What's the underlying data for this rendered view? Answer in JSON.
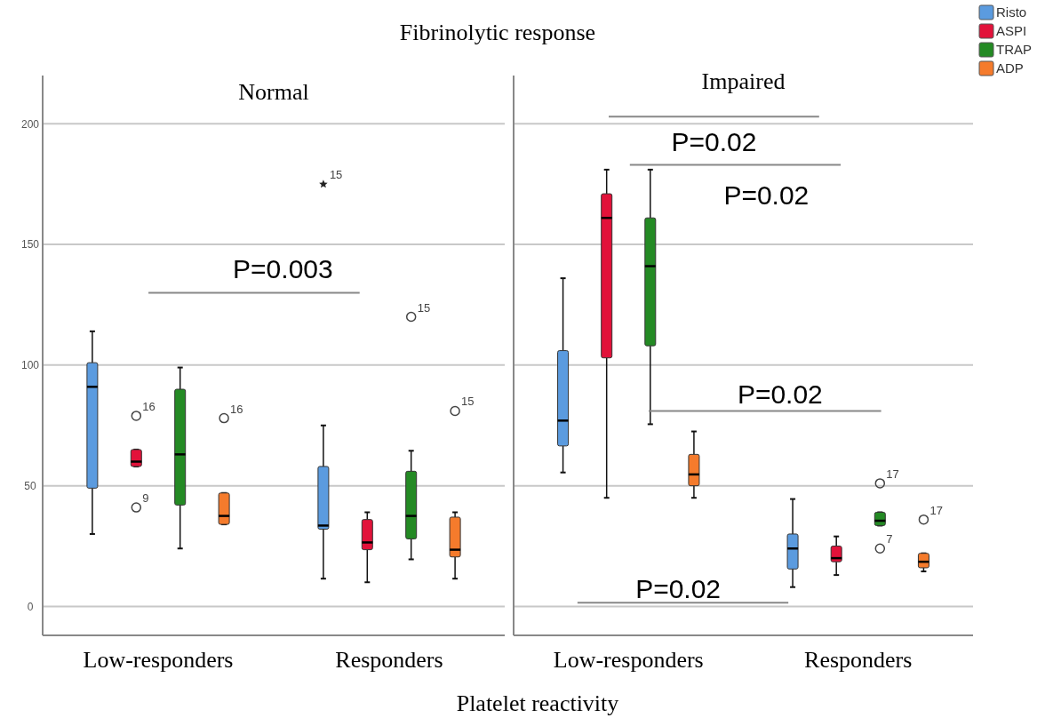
{
  "chart_data": [
    {
      "type": "box",
      "title": "Normal",
      "subtitle": "Fibrinolytic response",
      "xlabel": "Platelet reactivity",
      "categories": [
        "Low-responders",
        "Responders"
      ],
      "ylim": [
        -12,
        220
      ],
      "yticks": [
        0,
        50,
        100,
        150,
        200
      ],
      "grid": "y",
      "series": [
        {
          "color": "#5b9bdf",
          "boxes": [
            {
              "low": 30,
              "q1": 49,
              "median": 91,
              "q3": 101,
              "high": 114
            },
            {
              "low": 11.5,
              "q1": 32,
              "median": 33.5,
              "q3": 58,
              "high": 75,
              "outliers": [
                175
              ]
            }
          ]
        },
        {
          "color": "#e2123a",
          "boxes": [
            {
              "low": 58,
              "q1": 58,
              "median": 60,
              "q3": 65,
              "high": 65,
              "outliers": [
                79,
                41
              ]
            },
            {
              "low": 10,
              "q1": 23.5,
              "median": 26.5,
              "q3": 36,
              "high": 39
            }
          ]
        },
        {
          "color": "#248a24",
          "boxes": [
            {
              "low": 24,
              "q1": 42,
              "median": 63,
              "q3": 90,
              "high": 99
            },
            {
              "low": 19.5,
              "q1": 28,
              "median": 37.5,
              "q3": 56,
              "high": 64.5,
              "outliers": [
                120
              ]
            }
          ]
        },
        {
          "color": "#f57b2c",
          "boxes": [
            {
              "low": 34,
              "q1": 34,
              "median": 37.5,
              "q3": 47,
              "high": 47,
              "outliers": [
                78
              ]
            },
            {
              "low": 11.5,
              "q1": 20.5,
              "median": 23.5,
              "q3": 37,
              "high": 39,
              "outliers": [
                81
              ]
            }
          ]
        }
      ],
      "annotations": [
        "P=0.003",
        "16",
        "9",
        "16",
        "15",
        "15",
        "15"
      ]
    },
    {
      "type": "box",
      "title": "Impaired",
      "categories": [
        "Low-responders",
        "Responders"
      ],
      "ylim": [
        -12,
        220
      ],
      "yticks": [
        0,
        50,
        100,
        150,
        200
      ],
      "grid": "y",
      "tick_labels": "x",
      "legend": "top right",
      "series": [
        {
          "name": "Risto",
          "color": "#5b9bdf",
          "boxes": [
            {
              "low": 55.5,
              "q1": 66.5,
              "median": 77,
              "q3": 106,
              "high": 136
            },
            {
              "low": 8,
              "q1": 15.5,
              "median": 24,
              "q3": 30,
              "high": 44.5
            }
          ]
        },
        {
          "name": "ASPI",
          "color": "#e2123a",
          "boxes": [
            {
              "low": 45,
              "q1": 103,
              "median": 161,
              "q3": 171,
              "high": 181
            },
            {
              "low": 13,
              "q1": 18.5,
              "median": 20,
              "q3": 25,
              "high": 29
            }
          ]
        },
        {
          "name": "TRAP",
          "color": "#248a24",
          "boxes": [
            {
              "low": 75.5,
              "q1": 108,
              "median": 141,
              "q3": 161,
              "high": 181
            },
            {
              "low": 33.5,
              "q1": 33.5,
              "median": 35.5,
              "q3": 39,
              "high": 39,
              "outliers": [
                51,
                24
              ]
            }
          ]
        },
        {
          "name": "ADP",
          "color": "#f57b2c",
          "boxes": [
            {
              "low": 45,
              "q1": 50,
              "median": 54.7,
              "q3": 63,
              "high": 72.5
            },
            {
              "low": 14.5,
              "q1": 16,
              "median": 18.5,
              "q3": 22,
              "high": 22,
              "outliers": [
                36
              ]
            }
          ]
        }
      ],
      "annotations": [
        "P=0.02",
        "P=0.02",
        "P=0.02",
        "P=0.02",
        "17",
        "7",
        "17"
      ]
    }
  ]
}
